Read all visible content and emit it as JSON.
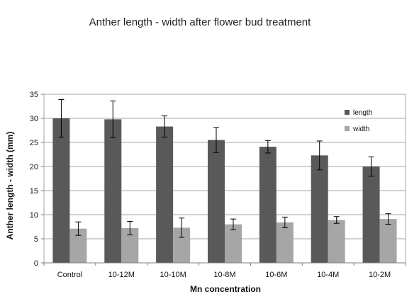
{
  "chart_data": {
    "type": "bar",
    "title": "Anther length - width after flower bud treatment",
    "xlabel": "Mn concentration",
    "ylabel": "Anther length - width (mm)",
    "categories": [
      "Control",
      "10-12M",
      "10-10M",
      "10-8M",
      "10-6M",
      "10-4M",
      "10-2M"
    ],
    "series": [
      {
        "name": "length",
        "color": "#595959",
        "values": [
          30.0,
          29.8,
          28.3,
          25.5,
          24.1,
          22.3,
          20.0
        ],
        "errors": [
          3.9,
          3.8,
          2.2,
          2.6,
          1.3,
          3.0,
          2.0
        ]
      },
      {
        "name": "width",
        "color": "#a6a6a6",
        "values": [
          7.1,
          7.2,
          7.3,
          8.0,
          8.4,
          8.9,
          9.1
        ],
        "errors": [
          1.4,
          1.4,
          2.0,
          1.1,
          1.1,
          0.7,
          1.1
        ]
      }
    ],
    "ylim": [
      0,
      35
    ],
    "yticks": [
      0,
      5,
      10,
      15,
      20,
      25,
      30,
      35
    ],
    "grid": true,
    "legend_position": "top-right"
  }
}
